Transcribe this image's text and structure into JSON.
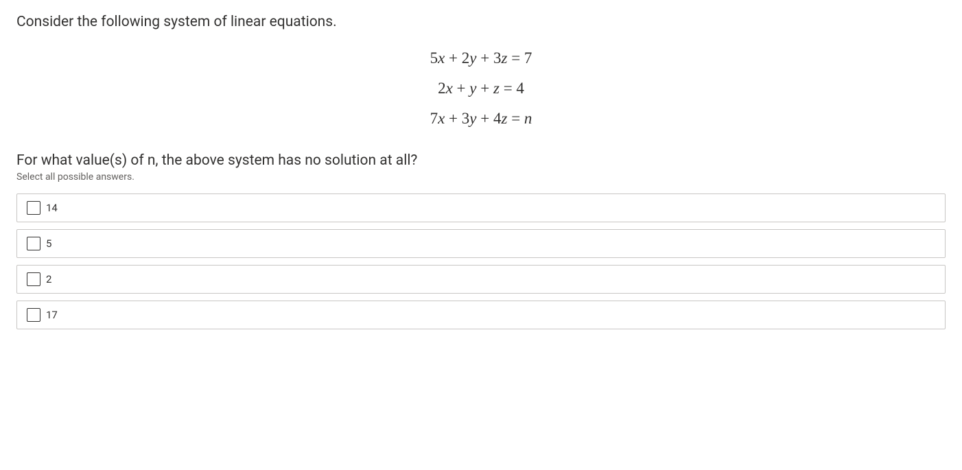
{
  "question": {
    "intro": "Consider the following system of linear equations.",
    "equations": {
      "eq1": {
        "lhs_coeffs": [
          "5",
          "2",
          "3"
        ],
        "rhs": "7"
      },
      "eq2": {
        "lhs_coeffs": [
          "2",
          "",
          ""
        ],
        "rhs": "4"
      },
      "eq3": {
        "lhs_coeffs": [
          "7",
          "3",
          "4"
        ],
        "rhs_var": "n"
      }
    },
    "prompt": "For what value(s) of n, the above system has no solution at all?",
    "hint": "Select all possible answers.",
    "options": [
      {
        "label": "14",
        "checked": false
      },
      {
        "label": "5",
        "checked": false
      },
      {
        "label": "2",
        "checked": false
      },
      {
        "label": "17",
        "checked": false
      }
    ]
  },
  "style": {
    "background_color": "#ffffff",
    "text_color": "#323130",
    "hint_color": "#605e5c",
    "border_color": "#c8c6c4",
    "hover_bg": "#f3f2f1",
    "question_fontsize": 21,
    "equation_fontsize": 23,
    "hint_fontsize": 14,
    "option_fontsize": 15,
    "checkbox_size": 20
  }
}
